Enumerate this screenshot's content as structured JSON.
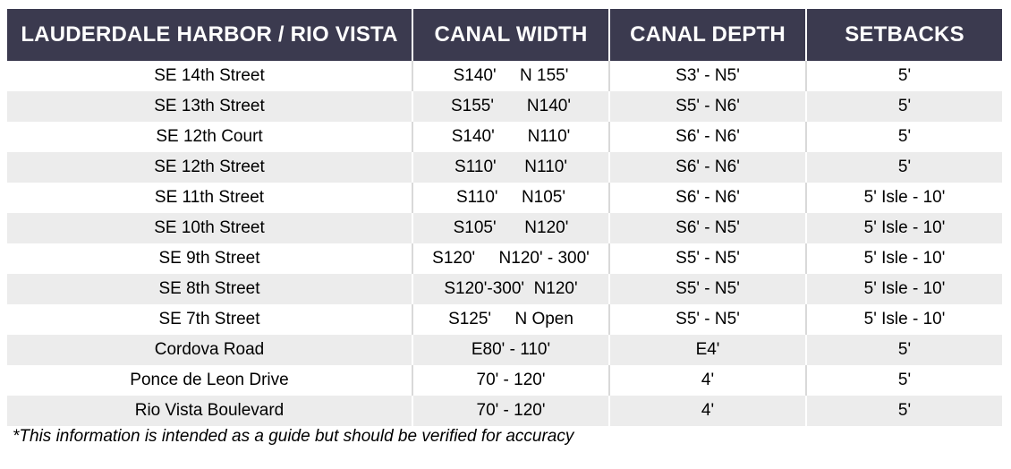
{
  "table": {
    "headers": [
      "LAUDERDALE HARBOR / RIO VISTA",
      "CANAL WIDTH",
      "CANAL DEPTH",
      "SETBACKS"
    ],
    "rows": [
      [
        "SE 14th Street",
        "S140'     N 155'",
        "S3' - N5'",
        "5'"
      ],
      [
        "SE 13th Street",
        "S155'       N140'",
        "S5' - N6'",
        "5'"
      ],
      [
        "SE 12th Court",
        "S140'       N110'",
        "S6' - N6'",
        "5'"
      ],
      [
        "SE 12th Street",
        "S110'      N110'",
        "S6' - N6'",
        "5'"
      ],
      [
        "SE 11th Street",
        "S110'     N105'",
        "S6' - N6'",
        "5' Isle - 10'"
      ],
      [
        "SE 10th Street",
        "S105'      N120'",
        "S6' - N5'",
        "5' Isle - 10'"
      ],
      [
        "SE 9th Street",
        "S120'     N120' - 300'",
        "S5' - N5'",
        "5' Isle - 10'"
      ],
      [
        "SE 8th Street",
        "S120'-300'  N120'",
        "S5' - N5'",
        "5' Isle - 10'"
      ],
      [
        "SE 7th Street",
        "S125'     N Open",
        "S5' - N5'",
        "5' Isle - 10'"
      ],
      [
        "Cordova Road",
        "E80' - 110'",
        "E4'",
        "5'"
      ],
      [
        "Ponce de Leon Drive",
        "70' - 120'",
        "4'",
        "5'"
      ],
      [
        "Rio Vista Boulevard",
        "70' - 120'",
        "4'",
        "5'"
      ]
    ]
  },
  "footnote": "*This information is intended as a guide but should be verified for accuracy",
  "colors": {
    "header_bg": "#3b3a4f",
    "header_text": "#ffffff",
    "row_alt_bg": "#ececec"
  }
}
